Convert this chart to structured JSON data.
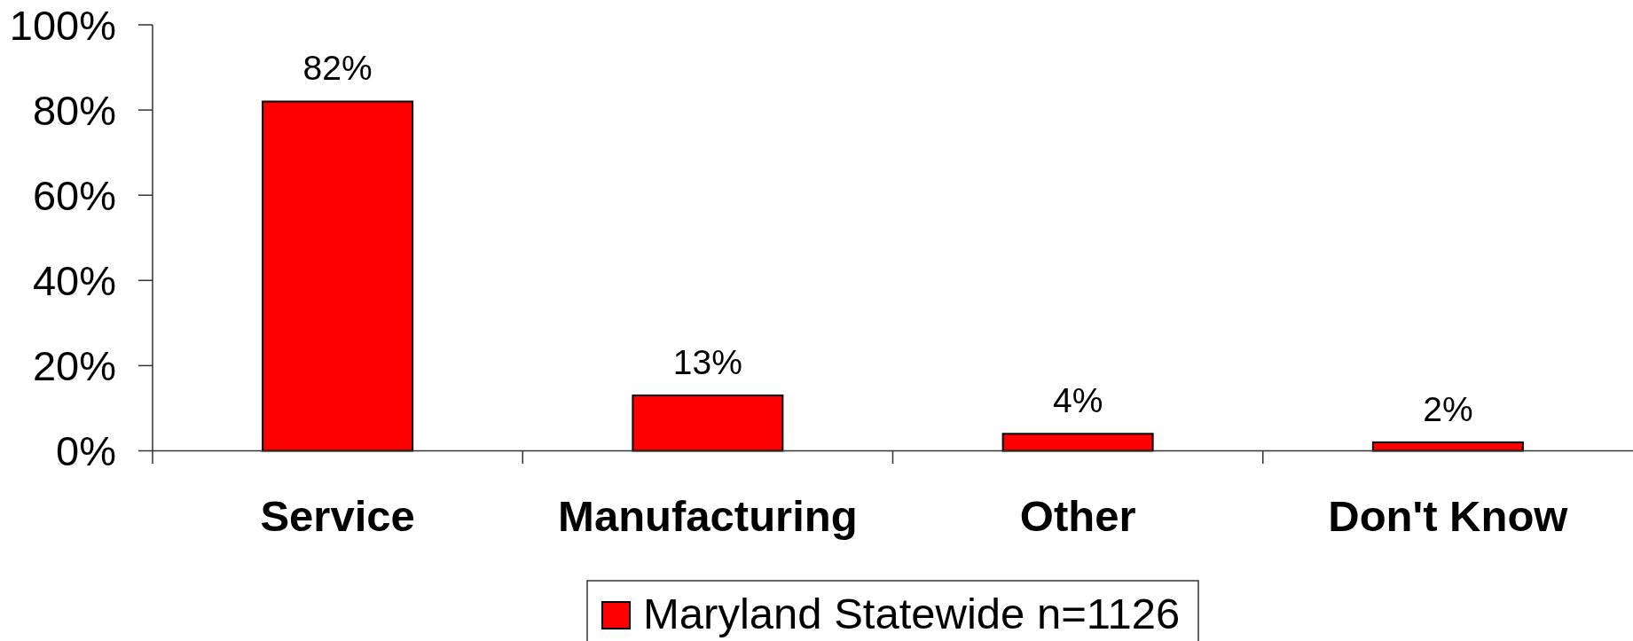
{
  "chart_data": {
    "type": "bar",
    "categories": [
      "Service",
      "Manufacturing",
      "Other",
      "Don't Know"
    ],
    "series": [
      {
        "name": "Maryland Statewide n=1126",
        "color": "#ff0000",
        "values": [
          82,
          13,
          4,
          2
        ],
        "value_labels": [
          "82%",
          "13%",
          "4%",
          "2%"
        ]
      }
    ],
    "ylim": [
      0,
      100
    ],
    "yticks": [
      {
        "value": 0,
        "label": "0%"
      },
      {
        "value": 20,
        "label": "20%"
      },
      {
        "value": 40,
        "label": "40%"
      },
      {
        "value": 60,
        "label": "60%"
      },
      {
        "value": 80,
        "label": "80%"
      },
      {
        "value": 100,
        "label": "100%"
      }
    ],
    "legend": "bottom"
  }
}
